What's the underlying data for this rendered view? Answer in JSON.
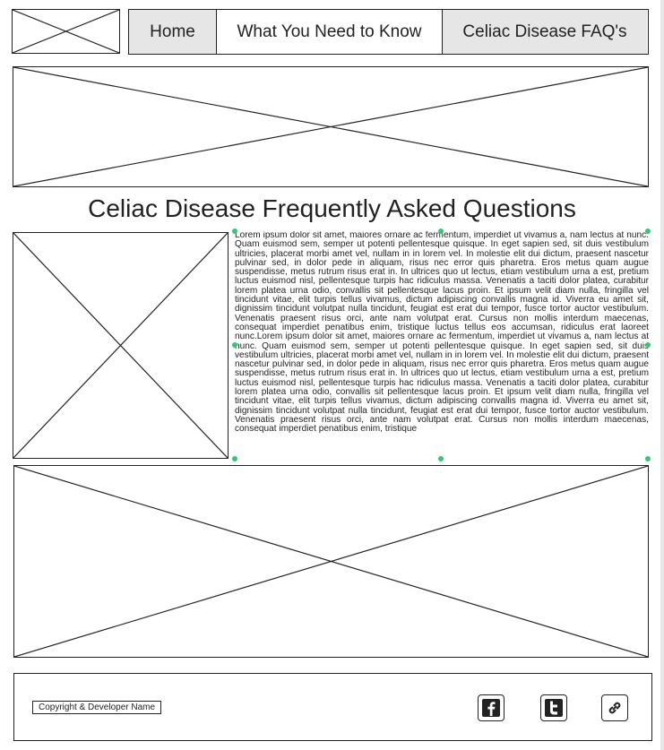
{
  "nav": {
    "items": [
      {
        "label": "Home",
        "state": "inactive"
      },
      {
        "label": "What You Need to Know",
        "state": "active"
      },
      {
        "label": "Celiac Disease FAQ's",
        "state": "inactive"
      }
    ]
  },
  "page": {
    "title": "Celiac Disease Frequently Asked Questions",
    "body": "Lorem ipsum dolor sit amet, maiores ornare ac fermentum, imperdiet ut vivamus a, nam lectus at nunc. Quam euismod sem, semper ut potenti pellentesque quisque. In eget sapien sed, sit duis vestibulum ultricies, placerat morbi amet vel, nullam in in lorem vel. In molestie elit dui dictum, praesent nascetur pulvinar sed, in dolor pede in aliquam, risus nec error quis pharetra. Eros metus quam augue suspendisse, metus rutrum risus erat in. In ultrices quo ut lectus, etiam vestibulum urna a est, pretium luctus euismod nisl, pellentesque turpis hac ridiculus massa. Venenatis a taciti dolor platea, curabitur lorem platea urna odio, convallis sit pellentesque lacus proin. Et ipsum velit diam nulla, fringilla vel tincidunt vitae, elit turpis tellus vivamus, dictum adipiscing convallis magna id. Viverra eu amet sit, dignissim tincidunt volutpat nulla tincidunt, feugiat est erat dui tempor, fusce tortor auctor vestibulum. Venenatis praesent risus orci, ante nam volutpat erat. Cursus non mollis interdum maecenas, consequat imperdiet penatibus enim, tristique luctus tellus eos accumsan, ridiculus erat laoreet nunc.Lorem ipsum dolor sit amet, maiores ornare ac fermentum, imperdiet ut vivamus a, nam lectus at nunc. Quam euismod sem, semper ut potenti pellentesque quisque. In eget sapien sed, sit duis vestibulum ultricies, placerat morbi amet vel, nullam in in lorem vel. In molestie elit dui dictum, praesent nascetur pulvinar sed, in dolor pede in aliquam, risus nec error quis pharetra. Eros metus quam augue suspendisse, metus rutrum risus erat in. In ultrices quo ut lectus, etiam vestibulum urna a est, pretium luctus euismod nisl, pellentesque turpis hac ridiculus massa. Venenatis a taciti dolor platea, curabitur lorem platea urna odio, convallis sit pellentesque lacus proin. Et ipsum velit diam nulla, fringilla vel tincidunt vitae, elit turpis tellus vivamus, dictum adipiscing convallis magna id. Viverra eu amet sit, dignissim tincidunt volutpat nulla tincidunt, feugiat est erat dui tempor, fusce tortor auctor vestibulum. Venenatis praesent risus orci, ante nam volutpat erat. Cursus non mollis interdum maecenas, consequat imperdiet penatibus enim, tristique"
  },
  "footer": {
    "copyright": "Copyright & Developer Name",
    "social": [
      {
        "icon": "facebook-icon"
      },
      {
        "icon": "twitter-icon"
      },
      {
        "icon": "link-icon"
      }
    ]
  },
  "colors": {
    "border": "#222222",
    "nav_inactive_bg": "#e6e6e6",
    "selection_handle": "#2ecc71"
  }
}
